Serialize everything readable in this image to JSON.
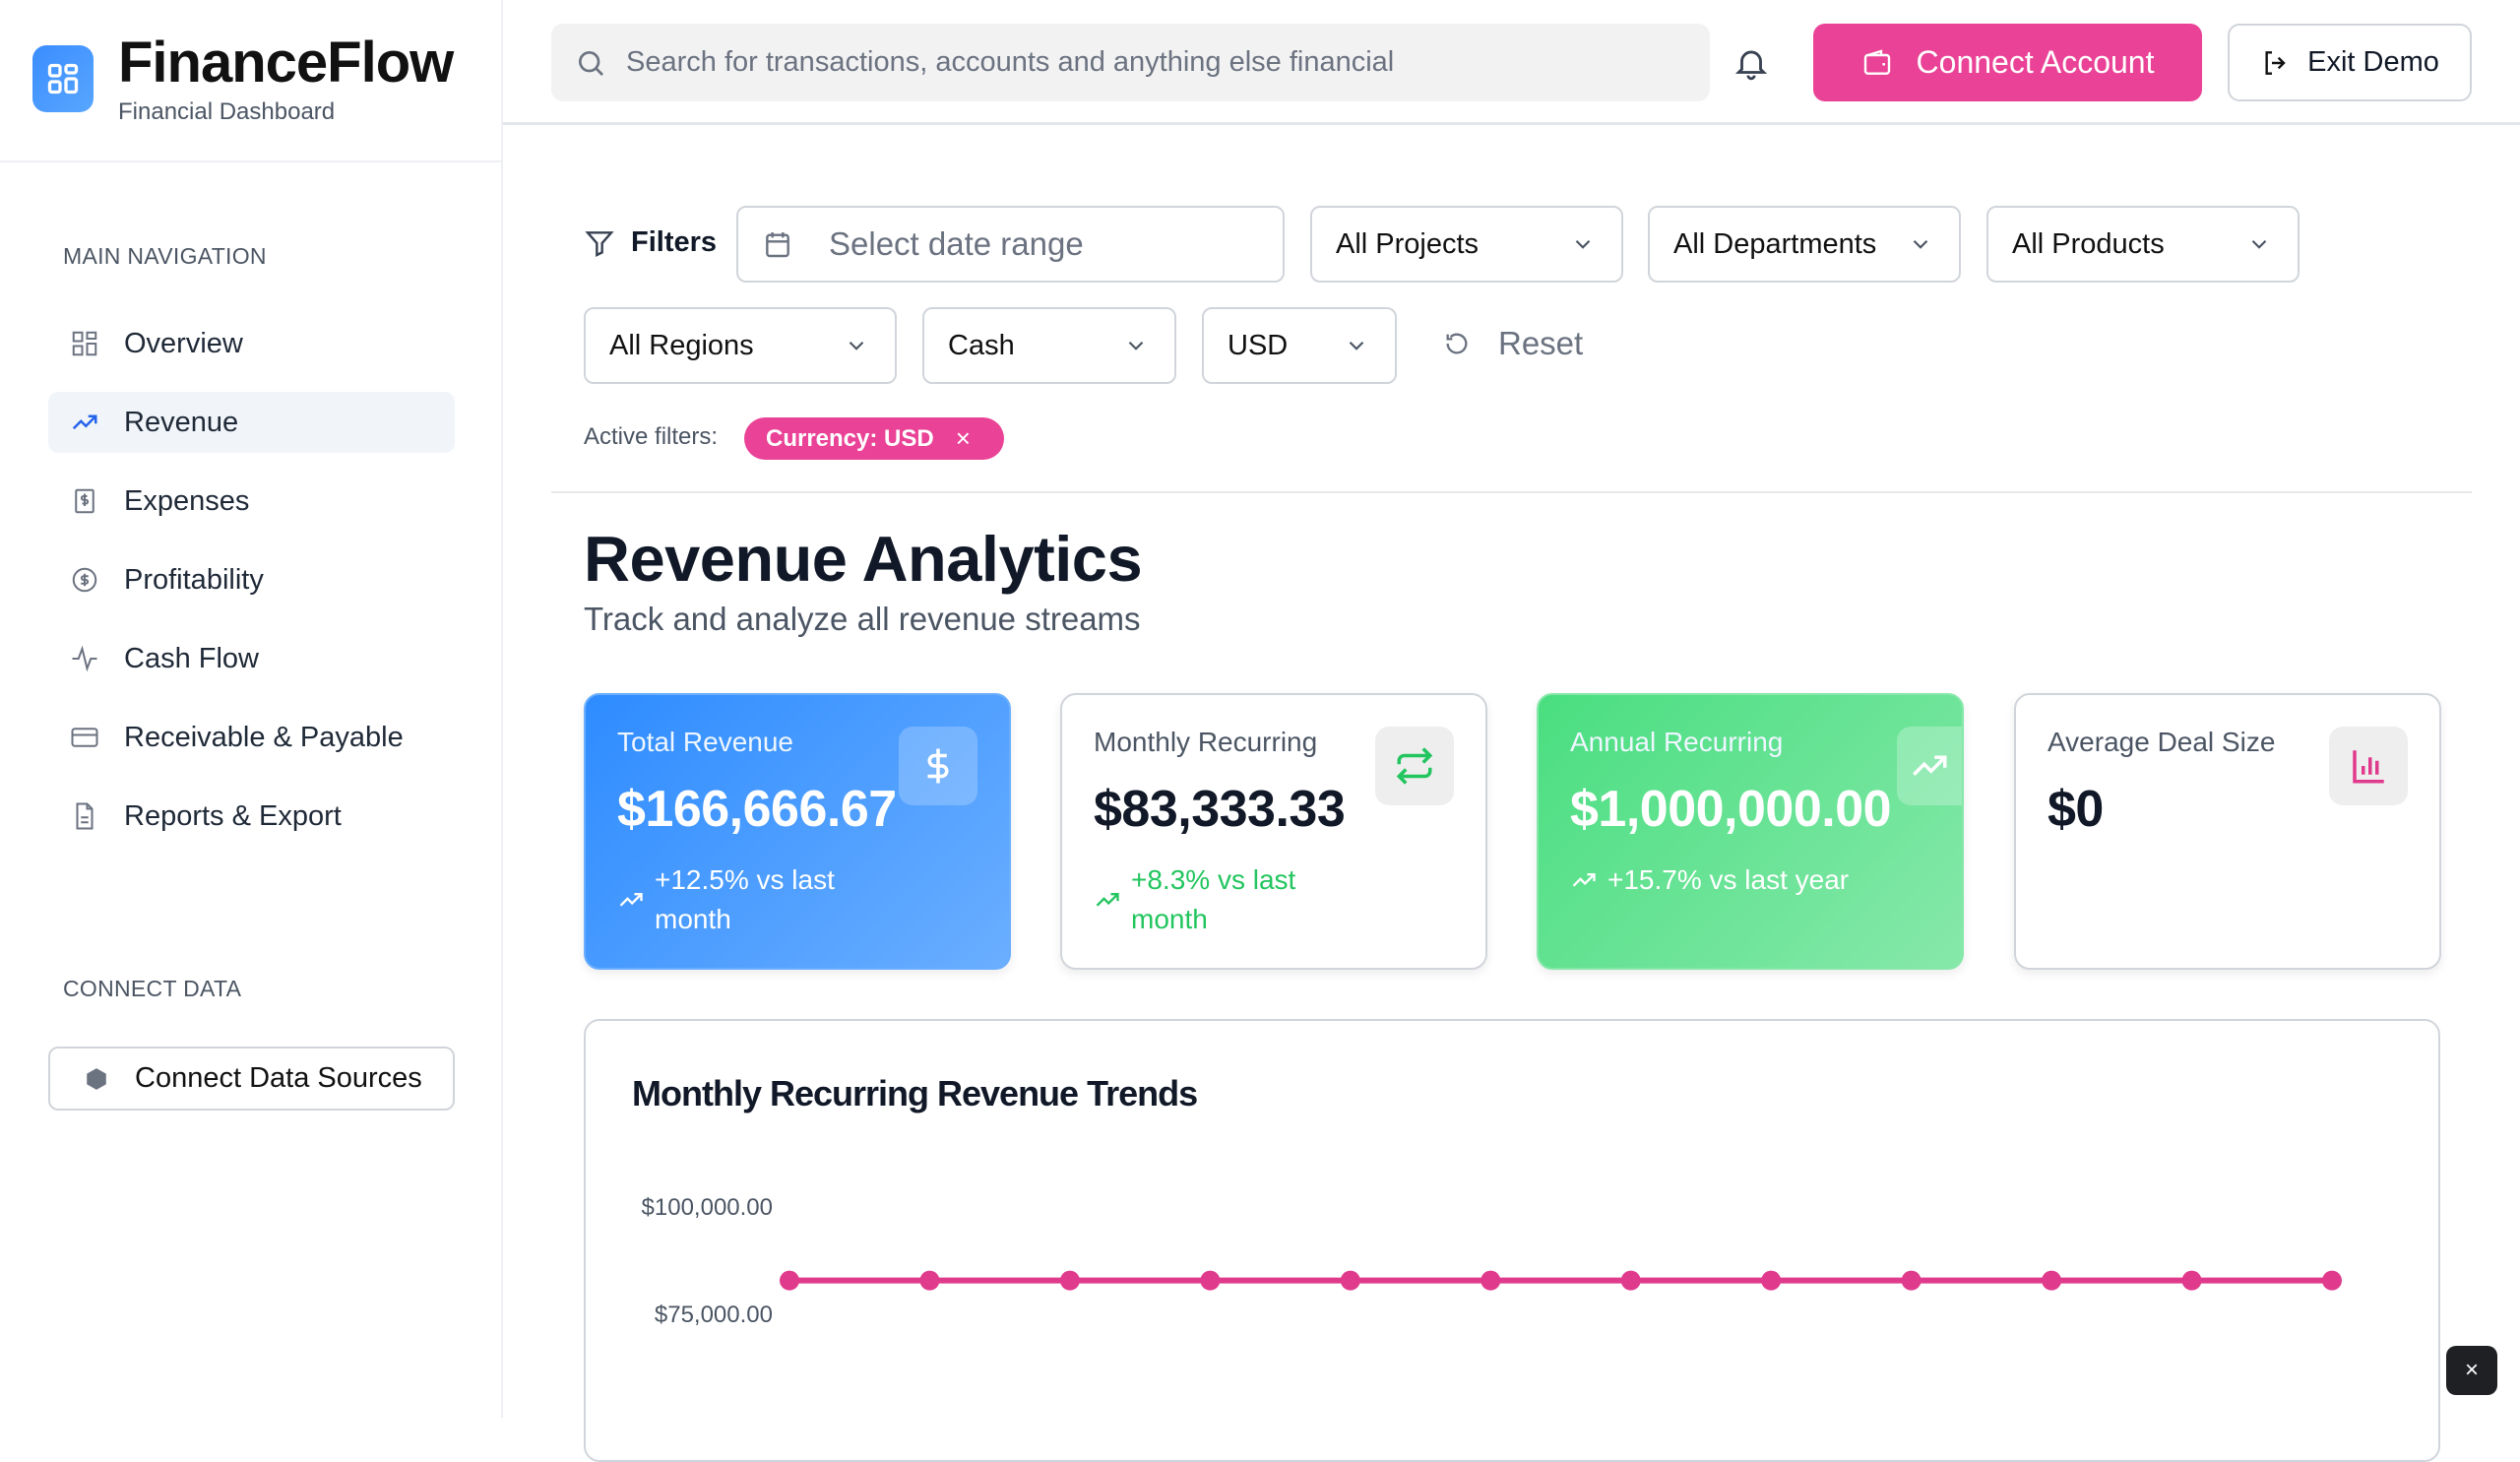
{
  "brand": {
    "name": "FinanceFlow",
    "subtitle": "Financial Dashboard"
  },
  "sidebar": {
    "main_heading": "MAIN NAVIGATION",
    "items": [
      {
        "label": "Overview",
        "icon": "grid-icon",
        "active": false
      },
      {
        "label": "Revenue",
        "icon": "trending-up-icon",
        "active": true
      },
      {
        "label": "Expenses",
        "icon": "receipt-icon",
        "active": false
      },
      {
        "label": "Profitability",
        "icon": "dollar-circle-icon",
        "active": false
      },
      {
        "label": "Cash Flow",
        "icon": "activity-icon",
        "active": false
      },
      {
        "label": "Receivable & Payable",
        "icon": "credit-card-icon",
        "active": false
      },
      {
        "label": "Reports & Export",
        "icon": "file-text-icon",
        "active": false
      }
    ],
    "connect_heading": "CONNECT DATA",
    "connect_button": "Connect Data Sources"
  },
  "header": {
    "search_placeholder": "Search for transactions, accounts and anything else financial",
    "connect_account": "Connect Account",
    "exit_demo": "Exit Demo"
  },
  "filters": {
    "label": "Filters",
    "date_placeholder": "Select date range",
    "projects": "All Projects",
    "departments": "All Departments",
    "products": "All Products",
    "regions": "All Regions",
    "basis": "Cash",
    "currency": "USD",
    "reset": "Reset",
    "active_label": "Active filters:",
    "active_chips": [
      "Currency: USD"
    ]
  },
  "page": {
    "title": "Revenue Analytics",
    "subtitle": "Track and analyze all revenue streams"
  },
  "cards": [
    {
      "label": "Total Revenue",
      "value": "$166,666.67",
      "trend": "+12.5% vs last month",
      "icon": "dollar-icon"
    },
    {
      "label": "Monthly Recurring",
      "value": "$83,333.33",
      "trend": "+8.3% vs last month",
      "icon": "repeat-icon"
    },
    {
      "label": "Annual Recurring",
      "value": "$1,000,000.00",
      "trend": "+15.7% vs last year",
      "icon": "trending-up-icon"
    },
    {
      "label": "Average Deal Size",
      "value": "$0",
      "icon": "bar-chart-icon"
    }
  ],
  "colors": {
    "accent": "#ea4296",
    "blue": "#2e8cff",
    "green": "#4ade80"
  },
  "chart_data": {
    "type": "line",
    "title": "Monthly Recurring Revenue Trends",
    "y_ticks": [
      "$100,000.00",
      "$75,000.00"
    ],
    "ylim_visible": [
      75000,
      100000
    ],
    "series": [
      {
        "values": [
          83333.33,
          83333.33,
          83333.33,
          83333.33,
          83333.33,
          83333.33,
          83333.33,
          83333.33,
          83333.33,
          83333.33,
          83333.33,
          83333.33
        ],
        "color": "#e03a8c"
      }
    ]
  },
  "toast": {
    "close": "×"
  }
}
